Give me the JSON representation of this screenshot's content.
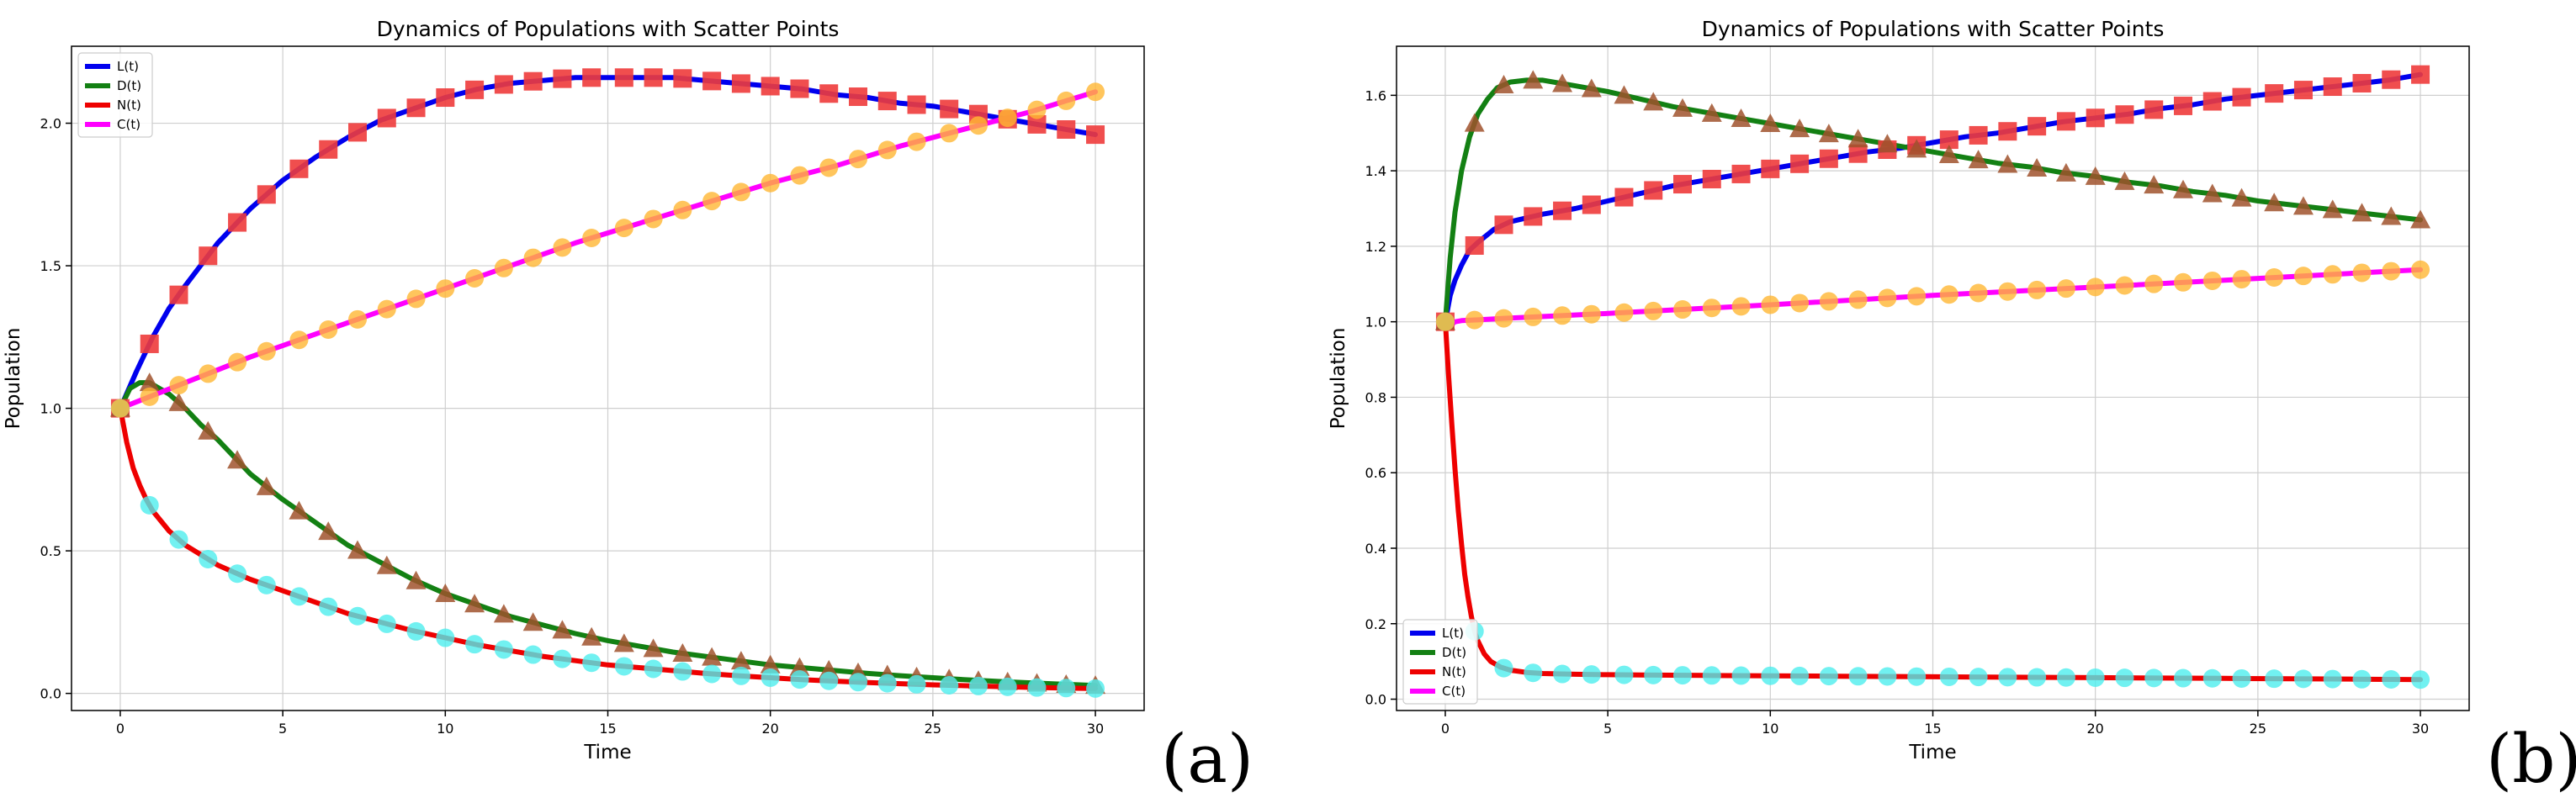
{
  "chart_data": [
    {
      "type": "line",
      "panel_label": "(a)",
      "title": "Dynamics of Populations with Scatter Points",
      "xlabel": "Time",
      "ylabel": "Population",
      "xlim": [
        -1.5,
        31.5
      ],
      "ylim": [
        -0.06,
        2.27
      ],
      "xticks": [
        0,
        5,
        10,
        15,
        20,
        25,
        30
      ],
      "xtick_labels": [
        "0",
        "5",
        "10",
        "15",
        "20",
        "25",
        "30"
      ],
      "yticks": [
        0.0,
        0.5,
        1.0,
        1.5,
        2.0
      ],
      "ytick_labels": [
        "0.0",
        "0.5",
        "1.0",
        "1.5",
        "2.0"
      ],
      "grid": true,
      "legend_position": "top-left",
      "scatter_x": [
        0,
        0.9,
        1.8,
        2.7,
        3.6,
        4.5,
        5.5,
        6.4,
        7.3,
        8.2,
        9.1,
        10.0,
        10.9,
        11.8,
        12.7,
        13.6,
        14.5,
        15.5,
        16.4,
        17.3,
        18.2,
        19.1,
        20.0,
        20.9,
        21.8,
        22.7,
        23.6,
        24.5,
        25.5,
        26.4,
        27.3,
        28.2,
        29.1,
        30.0
      ],
      "series": [
        {
          "name": "L(t)",
          "color": "#0000ee",
          "marker": "square",
          "marker_color": "#ee3b3b",
          "x": [
            0,
            0.5,
            1,
            1.5,
            2,
            3,
            4,
            5,
            6,
            7,
            8,
            9,
            10,
            11,
            12,
            13,
            14,
            15,
            16,
            17,
            18,
            19,
            20,
            21,
            22,
            23,
            24,
            25,
            26,
            27,
            28,
            29,
            30
          ],
          "values": [
            1.0,
            1.13,
            1.25,
            1.35,
            1.43,
            1.58,
            1.7,
            1.8,
            1.88,
            1.95,
            2.01,
            2.05,
            2.09,
            2.12,
            2.14,
            2.15,
            2.16,
            2.16,
            2.16,
            2.16,
            2.15,
            2.14,
            2.13,
            2.12,
            2.1,
            2.09,
            2.07,
            2.06,
            2.04,
            2.02,
            2.0,
            1.98,
            1.96
          ]
        },
        {
          "name": "D(t)",
          "color": "#138013",
          "marker": "triangle",
          "marker_color": "#a0522d",
          "x": [
            0,
            0.3,
            0.6,
            0.9,
            1.2,
            1.5,
            2,
            2.5,
            3,
            4,
            5,
            6,
            7,
            8,
            9,
            10,
            11,
            12,
            13,
            14,
            15,
            16,
            17,
            18,
            19,
            20,
            21,
            22,
            23,
            24,
            25,
            26,
            27,
            28,
            29,
            30
          ],
          "values": [
            1.0,
            1.07,
            1.09,
            1.09,
            1.07,
            1.05,
            1.0,
            0.94,
            0.89,
            0.77,
            0.68,
            0.6,
            0.52,
            0.46,
            0.4,
            0.35,
            0.31,
            0.27,
            0.24,
            0.21,
            0.185,
            0.165,
            0.145,
            0.13,
            0.115,
            0.1,
            0.09,
            0.08,
            0.07,
            0.062,
            0.055,
            0.048,
            0.042,
            0.037,
            0.032,
            0.028
          ]
        },
        {
          "name": "N(t)",
          "color": "#ee0000",
          "marker": "circle",
          "marker_color": "#4deeee",
          "x": [
            0,
            0.2,
            0.4,
            0.6,
            0.8,
            1,
            1.5,
            2,
            3,
            4,
            5,
            6,
            7,
            8,
            9,
            10,
            11,
            12,
            13,
            14,
            15,
            16,
            17,
            18,
            19,
            20,
            21,
            22,
            23,
            24,
            25,
            26,
            27,
            28,
            29,
            30
          ],
          "values": [
            1.0,
            0.88,
            0.79,
            0.73,
            0.68,
            0.64,
            0.57,
            0.52,
            0.45,
            0.4,
            0.36,
            0.32,
            0.28,
            0.25,
            0.22,
            0.195,
            0.17,
            0.15,
            0.13,
            0.115,
            0.1,
            0.09,
            0.08,
            0.07,
            0.062,
            0.055,
            0.048,
            0.043,
            0.038,
            0.034,
            0.03,
            0.027,
            0.024,
            0.021,
            0.019,
            0.017
          ]
        },
        {
          "name": "C(t)",
          "color": "#ff00ff",
          "marker": "circle",
          "marker_color": "#ffb733",
          "x": [
            0,
            2,
            4,
            6,
            8,
            10,
            12,
            14,
            16,
            18,
            20,
            22,
            24,
            26,
            28,
            30
          ],
          "values": [
            1.0,
            1.09,
            1.18,
            1.26,
            1.34,
            1.42,
            1.5,
            1.58,
            1.65,
            1.72,
            1.79,
            1.85,
            1.92,
            1.98,
            2.04,
            2.11
          ]
        }
      ]
    },
    {
      "type": "line",
      "panel_label": "(b)",
      "title": "Dynamics of Populations with Scatter Points",
      "xlabel": "Time",
      "ylabel": "Population",
      "xlim": [
        -1.5,
        31.5
      ],
      "ylim": [
        -0.03,
        1.73
      ],
      "xticks": [
        0,
        5,
        10,
        15,
        20,
        25,
        30
      ],
      "xtick_labels": [
        "0",
        "5",
        "10",
        "15",
        "20",
        "25",
        "30"
      ],
      "yticks": [
        0.0,
        0.2,
        0.4,
        0.6,
        0.8,
        1.0,
        1.2,
        1.4,
        1.6
      ],
      "ytick_labels": [
        "0.0",
        "0.2",
        "0.4",
        "0.6",
        "0.8",
        "1.0",
        "1.2",
        "1.4",
        "1.6"
      ],
      "grid": true,
      "legend_position": "bottom-left",
      "scatter_x": [
        0,
        0.9,
        1.8,
        2.7,
        3.6,
        4.5,
        5.5,
        6.4,
        7.3,
        8.2,
        9.1,
        10.0,
        10.9,
        11.8,
        12.7,
        13.6,
        14.5,
        15.5,
        16.4,
        17.3,
        18.2,
        19.1,
        20.0,
        20.9,
        21.8,
        22.7,
        23.6,
        24.5,
        25.5,
        26.4,
        27.3,
        28.2,
        29.1,
        30.0
      ],
      "series": [
        {
          "name": "L(t)",
          "color": "#0000ee",
          "marker": "square",
          "marker_color": "#ee3b3b",
          "x": [
            0,
            0.15,
            0.3,
            0.5,
            0.75,
            1,
            1.5,
            2,
            3,
            4,
            5,
            6,
            7,
            8,
            9,
            10,
            11,
            12,
            13,
            14,
            15,
            16,
            17,
            18,
            19,
            20,
            21,
            22,
            23,
            24,
            25,
            26,
            27,
            28,
            29,
            30
          ],
          "values": [
            1.0,
            1.07,
            1.11,
            1.15,
            1.19,
            1.21,
            1.245,
            1.265,
            1.285,
            1.3,
            1.32,
            1.34,
            1.36,
            1.375,
            1.39,
            1.405,
            1.42,
            1.435,
            1.45,
            1.46,
            1.475,
            1.49,
            1.5,
            1.515,
            1.53,
            1.54,
            1.55,
            1.565,
            1.575,
            1.59,
            1.6,
            1.61,
            1.62,
            1.63,
            1.64,
            1.655
          ]
        },
        {
          "name": "D(t)",
          "color": "#138013",
          "marker": "triangle",
          "marker_color": "#a0522d",
          "x": [
            0,
            0.15,
            0.3,
            0.5,
            0.75,
            1,
            1.3,
            1.6,
            2,
            2.5,
            3,
            4,
            5,
            6,
            7,
            8,
            9,
            10,
            11,
            12,
            13,
            14,
            15,
            16,
            17,
            18,
            19,
            20,
            21,
            22,
            23,
            24,
            25,
            26,
            27,
            28,
            29,
            30
          ],
          "values": [
            1.0,
            1.17,
            1.29,
            1.4,
            1.49,
            1.55,
            1.59,
            1.62,
            1.635,
            1.64,
            1.64,
            1.625,
            1.61,
            1.59,
            1.57,
            1.555,
            1.54,
            1.525,
            1.51,
            1.495,
            1.48,
            1.465,
            1.45,
            1.435,
            1.42,
            1.41,
            1.395,
            1.385,
            1.37,
            1.36,
            1.345,
            1.335,
            1.32,
            1.31,
            1.3,
            1.29,
            1.28,
            1.27
          ]
        },
        {
          "name": "N(t)",
          "color": "#ee0000",
          "marker": "circle",
          "marker_color": "#4deeee",
          "x": [
            0,
            0.1,
            0.2,
            0.3,
            0.4,
            0.5,
            0.6,
            0.7,
            0.8,
            0.9,
            1.0,
            1.2,
            1.4,
            1.7,
            2,
            2.5,
            3,
            4,
            5,
            6,
            8,
            10,
            12,
            14,
            16,
            18,
            20,
            22,
            24,
            26,
            28,
            30
          ],
          "values": [
            1.0,
            0.86,
            0.73,
            0.61,
            0.5,
            0.41,
            0.33,
            0.27,
            0.22,
            0.18,
            0.155,
            0.12,
            0.1,
            0.085,
            0.077,
            0.071,
            0.068,
            0.066,
            0.065,
            0.064,
            0.063,
            0.062,
            0.061,
            0.06,
            0.059,
            0.058,
            0.057,
            0.056,
            0.055,
            0.054,
            0.053,
            0.052
          ]
        },
        {
          "name": "C(t)",
          "color": "#ff00ff",
          "marker": "circle",
          "marker_color": "#ffb733",
          "x": [
            0,
            0.1,
            0.2,
            0.3,
            0.5,
            1,
            2,
            5,
            10,
            15,
            20,
            25,
            30
          ],
          "values": [
            1.0,
            0.985,
            0.993,
            1.0,
            1.003,
            1.005,
            1.01,
            1.022,
            1.045,
            1.07,
            1.092,
            1.115,
            1.138
          ]
        }
      ]
    }
  ]
}
